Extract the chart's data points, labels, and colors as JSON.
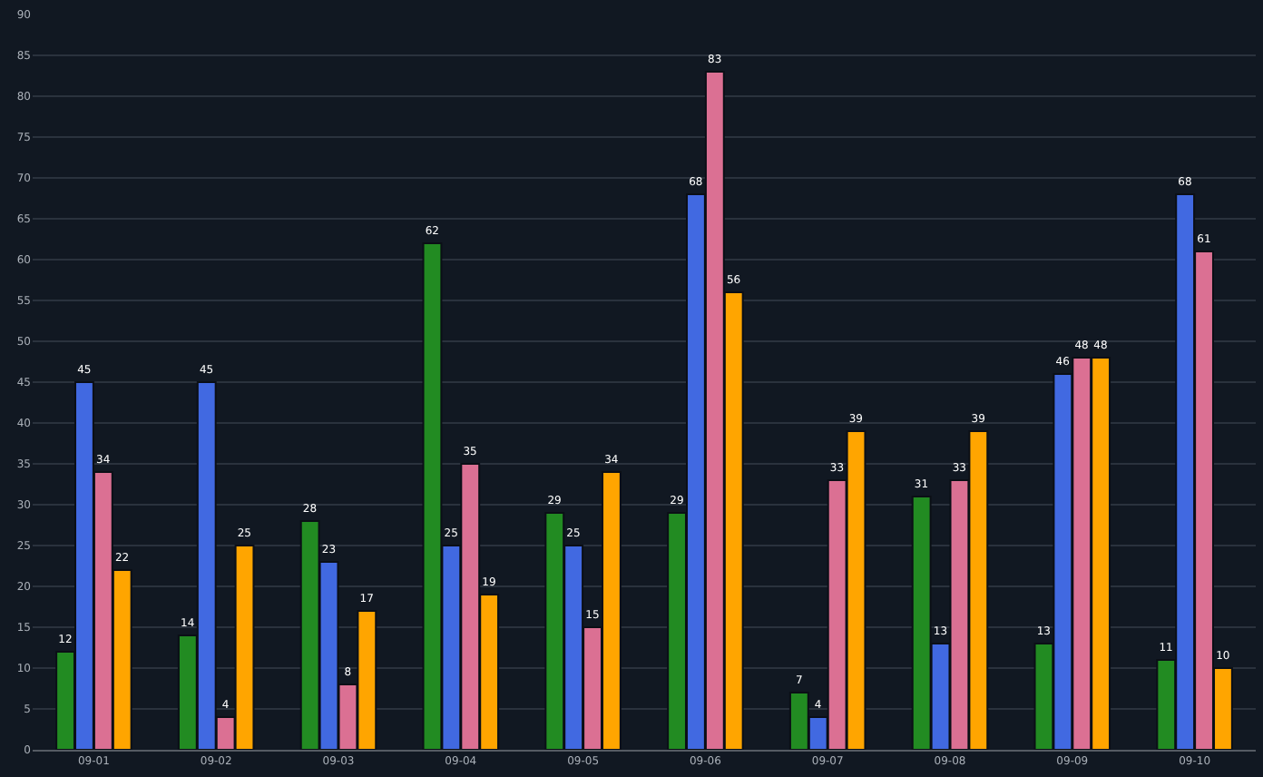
{
  "chart_data": {
    "type": "bar",
    "categories": [
      "09-01",
      "09-02",
      "09-03",
      "09-04",
      "09-05",
      "09-06",
      "09-07",
      "09-08",
      "09-09",
      "09-10"
    ],
    "series": [
      {
        "color": "#228b22",
        "values": [
          12,
          14,
          28,
          62,
          29,
          29,
          7,
          31,
          13,
          11
        ]
      },
      {
        "color": "#4169e1",
        "values": [
          45,
          45,
          23,
          25,
          25,
          68,
          4,
          13,
          46,
          68
        ]
      },
      {
        "color": "#db7093",
        "values": [
          34,
          4,
          8,
          35,
          15,
          83,
          33,
          33,
          48,
          61
        ]
      },
      {
        "color": "#ffa500",
        "values": [
          22,
          25,
          17,
          19,
          34,
          56,
          39,
          39,
          48,
          10
        ]
      }
    ],
    "ylim": [
      0,
      90
    ],
    "yticks": [
      0,
      5,
      10,
      15,
      20,
      25,
      30,
      35,
      40,
      45,
      50,
      55,
      60,
      65,
      70,
      75,
      80,
      85,
      90
    ],
    "grid": "y",
    "data_labels": true
  }
}
